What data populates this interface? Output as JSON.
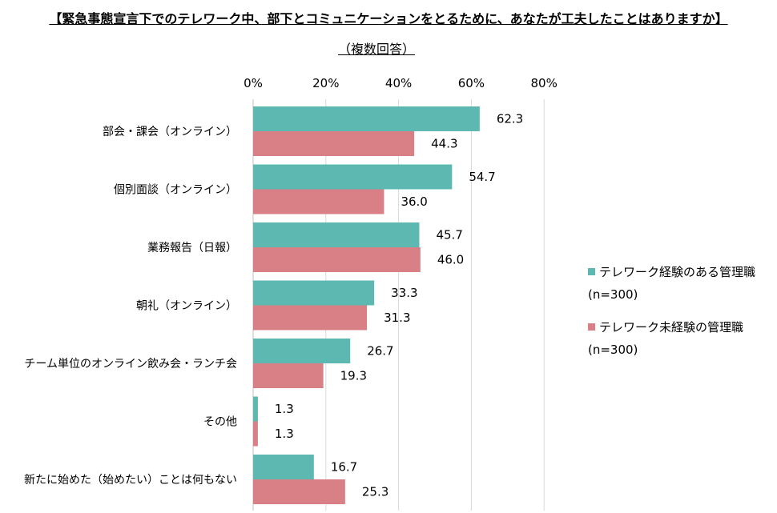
{
  "chart_data": {
    "type": "bar",
    "orientation": "horizontal",
    "title": "【緊急事態宣言下でのテレワーク中、部下とコミュニケーションをとるために、あなたが工夫したことはありますか】",
    "subtitle": "（複数回答）",
    "categories": [
      "部会・課会（オンライン）",
      "個別面談（オンライン）",
      "業務報告（日報）",
      "朝礼（オンライン）",
      "チーム単位のオンライン飲み会・ランチ会",
      "その他",
      "新たに始めた（始めたい）ことは何もない"
    ],
    "series": [
      {
        "name": "テレワーク経験のある管理職",
        "note": "(n=300)",
        "color": "#5cb8b0",
        "values": [
          62.3,
          54.7,
          45.7,
          33.3,
          26.7,
          1.3,
          16.7
        ],
        "labels": [
          "62.3",
          "54.7",
          "45.7",
          "33.3",
          "26.7",
          "1.3",
          "16.7"
        ]
      },
      {
        "name": "テレワーク未経験の管理職",
        "note": "(n=300)",
        "color": "#d98087",
        "values": [
          44.3,
          36.0,
          46.0,
          31.3,
          19.3,
          1.3,
          25.3
        ],
        "labels": [
          "44.3",
          "36.0",
          "46.0",
          "31.3",
          "19.3",
          "1.3",
          "25.3"
        ]
      }
    ],
    "xlim": [
      0,
      80
    ],
    "xticks": [
      0,
      20,
      40,
      60,
      80
    ],
    "xtick_labels": [
      "0%",
      "20%",
      "40%",
      "60%",
      "80%"
    ],
    "axis_position": "top",
    "grid": true,
    "legend_position": "right"
  }
}
